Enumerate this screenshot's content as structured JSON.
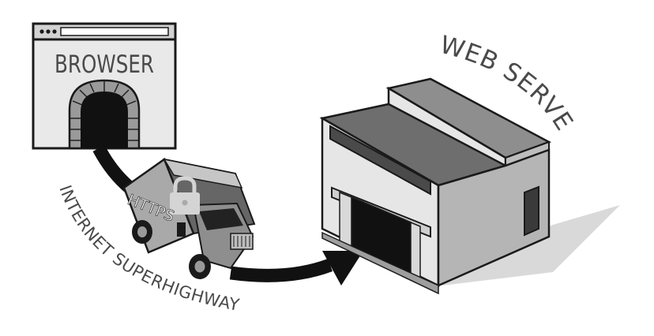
{
  "browser": {
    "label": "BROWSER"
  },
  "truck": {
    "label": "HTTPS"
  },
  "server": {
    "label": "WEB SERVER"
  },
  "route": {
    "label": "INTERNET SUPERHIGHWAY"
  },
  "colors": {
    "outline": "#1a1a1a",
    "light_fill": "#e6e6e6",
    "mid_fill": "#b5b5b5",
    "dark_fill": "#6e6e6e",
    "shadow": "#d9d9d9",
    "label_text": "#4a4a4a"
  },
  "icons": [
    "lock-icon",
    "tunnel-icon",
    "arrow-icon"
  ]
}
